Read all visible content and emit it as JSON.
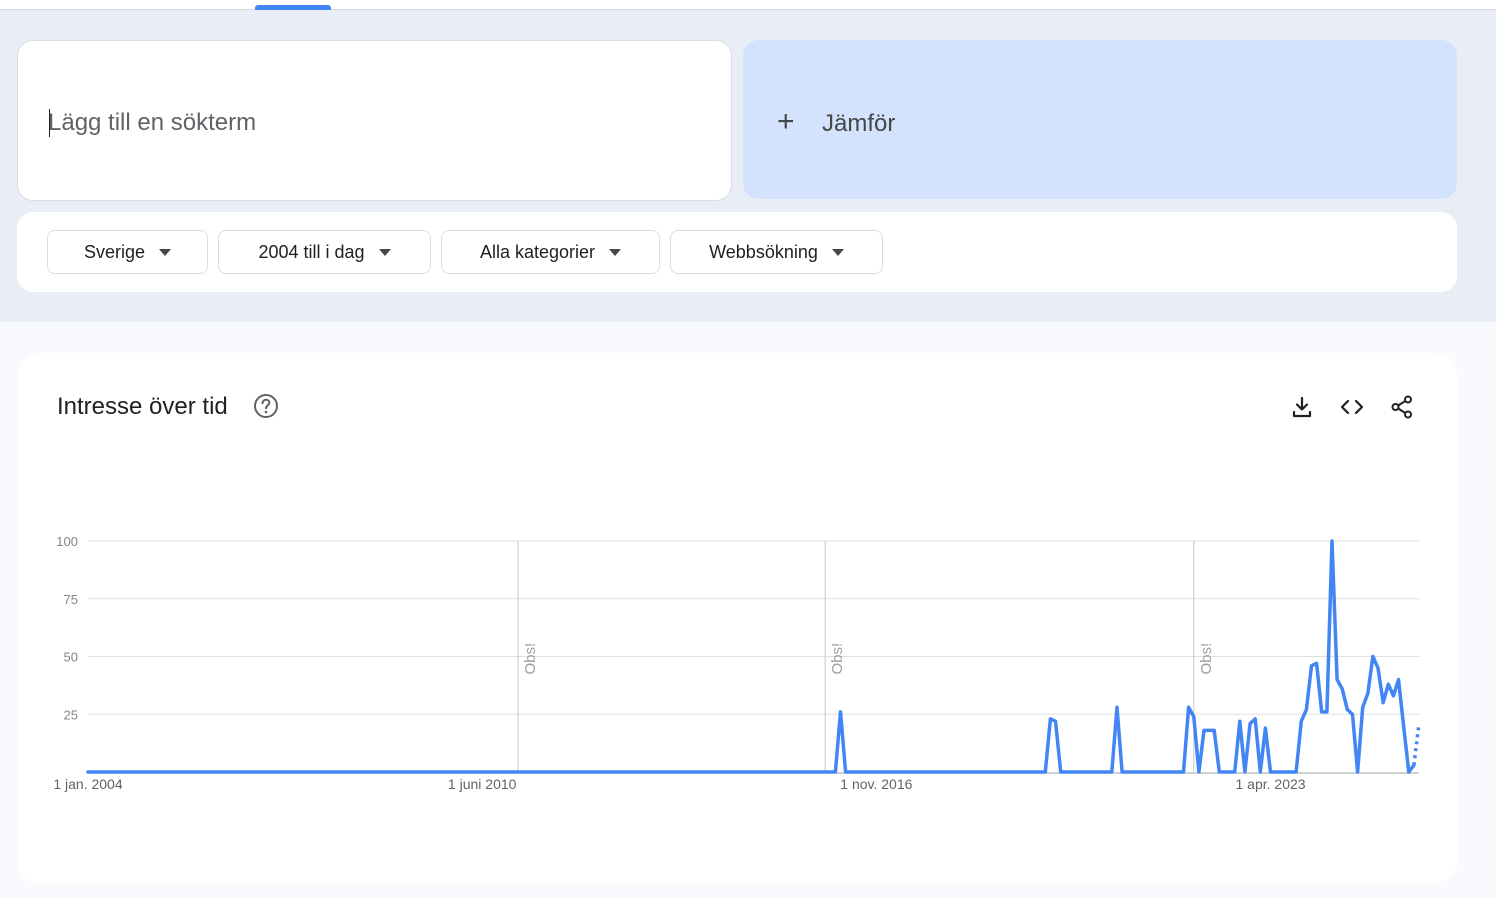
{
  "search": {
    "placeholder": "Lägg till en sökterm",
    "value": ""
  },
  "compare": {
    "label": "Jämför",
    "icon": "plus-icon"
  },
  "filters": [
    {
      "label": "Sverige"
    },
    {
      "label": "2004 till i dag"
    },
    {
      "label": "Alla kategorier"
    },
    {
      "label": "Webbsökning"
    }
  ],
  "chart_card": {
    "title": "Intresse över tid",
    "actions": [
      "download-icon",
      "embed-code-icon",
      "share-icon"
    ]
  },
  "colors": {
    "series": "#4285f4",
    "grid": "#e0e0e0",
    "accent": "#4285f4"
  },
  "chart_data": {
    "type": "line",
    "title": "Intresse över tid",
    "xlabel": "",
    "ylabel": "",
    "ylim": [
      0,
      100
    ],
    "yticks": [
      "100",
      "75",
      "50",
      "25"
    ],
    "xtick_labels": [
      "1 jan. 2004",
      "1 juni 2010",
      "1 nov. 2016",
      "1 apr. 2023"
    ],
    "xtick_dates": [
      "2004-01",
      "2010-06",
      "2016-11",
      "2023-04"
    ],
    "annotations": [
      {
        "date": "2011-01",
        "label": "Obs!"
      },
      {
        "date": "2016-01",
        "label": "Obs!"
      },
      {
        "date": "2022-01",
        "label": "Obs!"
      }
    ],
    "grid": true,
    "series": [
      {
        "points": [
          [
            "2004-01",
            0
          ],
          [
            "2016-01",
            0
          ],
          [
            "2016-03",
            0
          ],
          [
            "2016-04",
            26
          ],
          [
            "2016-05",
            0
          ],
          [
            "2016-06",
            0
          ],
          [
            "2019-08",
            0
          ],
          [
            "2019-09",
            23
          ],
          [
            "2019-10",
            22
          ],
          [
            "2019-11",
            0
          ],
          [
            "2020-09",
            0
          ],
          [
            "2020-10",
            28
          ],
          [
            "2020-11",
            0
          ],
          [
            "2021-11",
            0
          ],
          [
            "2021-12",
            28
          ],
          [
            "2022-01",
            24
          ],
          [
            "2022-02",
            0
          ],
          [
            "2022-03",
            18
          ],
          [
            "2022-05",
            18
          ],
          [
            "2022-06",
            0
          ],
          [
            "2022-09",
            0
          ],
          [
            "2022-10",
            22
          ],
          [
            "2022-11",
            0
          ],
          [
            "2022-12",
            21
          ],
          [
            "2023-01",
            23
          ],
          [
            "2023-02",
            0
          ],
          [
            "2023-03",
            19
          ],
          [
            "2023-04",
            0
          ],
          [
            "2023-09",
            0
          ],
          [
            "2023-10",
            22
          ],
          [
            "2023-11",
            27
          ],
          [
            "2023-12",
            46
          ],
          [
            "2024-01",
            47
          ],
          [
            "2024-02",
            26
          ],
          [
            "2024-03",
            26
          ],
          [
            "2024-04",
            100
          ],
          [
            "2024-05",
            40
          ],
          [
            "2024-06",
            36
          ],
          [
            "2024-07",
            27
          ],
          [
            "2024-08",
            25
          ],
          [
            "2024-09",
            0
          ],
          [
            "2024-10",
            28
          ],
          [
            "2024-11",
            34
          ],
          [
            "2024-12",
            50
          ],
          [
            "2025-01",
            45
          ],
          [
            "2025-02",
            30
          ],
          [
            "2025-03",
            38
          ],
          [
            "2025-04",
            33
          ],
          [
            "2025-05",
            40
          ],
          [
            "2025-06",
            20
          ],
          [
            "2025-07",
            0
          ],
          [
            "2025-08",
            3
          ]
        ],
        "partial": [
          [
            "2025-08",
            3
          ],
          [
            "2025-09",
            21
          ]
        ]
      }
    ]
  }
}
